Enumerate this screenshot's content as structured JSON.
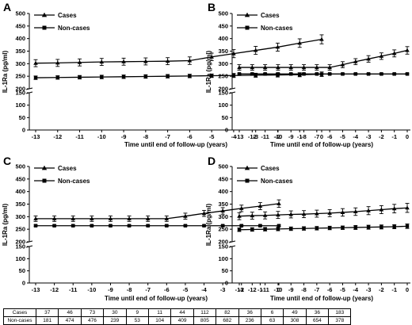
{
  "chart_data": [
    {
      "panel": "A",
      "type": "line",
      "ylabel": "IL-1Ra (pg/ml)",
      "xlabel": "Time until end of follow-up (years)",
      "x": [
        -13,
        -12,
        -11,
        -10,
        -9,
        -8,
        -7,
        -6,
        -5,
        -4,
        -3,
        -2,
        -1,
        0
      ],
      "series": [
        {
          "name": "Cases",
          "marker": "triangle",
          "values": [
            302,
            303,
            305,
            307,
            308,
            309,
            310,
            312,
            327,
            340,
            353,
            366,
            382,
            397
          ],
          "errors": [
            14,
            14,
            14,
            14,
            14,
            14,
            14,
            15,
            15,
            16,
            16,
            16,
            17,
            18
          ]
        },
        {
          "name": "Non-cases",
          "marker": "square",
          "values": [
            244,
            245,
            246,
            247,
            248,
            249,
            250,
            251,
            252,
            253,
            254,
            255,
            256,
            258
          ],
          "errors": [
            7,
            7,
            7,
            7,
            7,
            7,
            7,
            7,
            7,
            8,
            8,
            8,
            8,
            9
          ]
        }
      ]
    },
    {
      "panel": "B",
      "type": "line",
      "ylabel": "IL-1Ra (pg/ml)",
      "xlabel": "Time until end of follow-up (years)",
      "x": [
        -13,
        -12,
        -11,
        -10,
        -9,
        -8,
        -7,
        -6,
        -5,
        -4,
        -3,
        -2,
        -1,
        0
      ],
      "series": [
        {
          "name": "Cases",
          "marker": "triangle",
          "values": [
            285,
            285,
            285,
            285,
            285,
            285,
            285,
            285,
            296,
            308,
            319,
            330,
            341,
            353
          ],
          "errors": [
            11,
            11,
            11,
            11,
            11,
            11,
            11,
            11,
            12,
            12,
            13,
            13,
            14,
            15
          ]
        },
        {
          "name": "Non-cases",
          "marker": "square",
          "values": [
            259,
            259,
            259,
            259,
            259,
            259,
            259,
            259,
            259,
            259,
            259,
            259,
            259,
            259
          ],
          "errors": [
            3,
            3,
            3,
            3,
            3,
            3,
            3,
            3,
            3,
            3,
            3,
            3,
            3,
            3
          ]
        }
      ]
    },
    {
      "panel": "C",
      "type": "line",
      "ylabel": "IL-1Ra (pg/ml)",
      "xlabel": "Time until end of follow-up (years)",
      "x": [
        -13,
        -12,
        -11,
        -10,
        -9,
        -8,
        -7,
        -6,
        -5,
        -4,
        -3,
        -2,
        -1,
        0
      ],
      "series": [
        {
          "name": "Cases",
          "marker": "triangle",
          "values": [
            292,
            292,
            292,
            292,
            292,
            292,
            292,
            292,
            302,
            313,
            323,
            333,
            342,
            352
          ],
          "errors": [
            11,
            11,
            11,
            11,
            11,
            11,
            11,
            11,
            12,
            12,
            13,
            13,
            14,
            15
          ]
        },
        {
          "name": "Non-cases",
          "marker": "square",
          "values": [
            264,
            264,
            264,
            264,
            264,
            264,
            264,
            264,
            264,
            264,
            264,
            264,
            264,
            264
          ],
          "errors": [
            3,
            3,
            3,
            3,
            3,
            3,
            3,
            3,
            3,
            3,
            3,
            3,
            3,
            3
          ]
        }
      ]
    },
    {
      "panel": "D",
      "type": "line",
      "ylabel": "IL-1Ra (pg/ml)",
      "xlabel": "Time until end of follow-up (years)",
      "x": [
        -13,
        -12,
        -11,
        -10,
        -9,
        -8,
        -7,
        -6,
        -5,
        -4,
        -3,
        -2,
        -1,
        0
      ],
      "series": [
        {
          "name": "Cases",
          "marker": "triangle",
          "values": [
            302,
            304,
            305,
            307,
            309,
            310,
            312,
            314,
            317,
            320,
            324,
            328,
            332,
            335
          ],
          "errors": [
            14,
            14,
            14,
            14,
            14,
            14,
            14,
            14,
            15,
            15,
            16,
            16,
            17,
            18
          ]
        },
        {
          "name": "Non-cases",
          "marker": "square",
          "values": [
            248,
            249,
            250,
            251,
            252,
            253,
            254,
            255,
            256,
            257,
            258,
            259,
            260,
            262
          ],
          "errors": [
            7,
            7,
            7,
            7,
            7,
            7,
            7,
            7,
            7,
            8,
            8,
            8,
            8,
            9
          ]
        }
      ]
    }
  ],
  "axis": {
    "x_ticks": [
      "-13",
      "-12",
      "-11",
      "-10",
      "-9",
      "-8",
      "-7",
      "-6",
      "-5",
      "-4",
      "-3",
      "-2",
      "-1",
      "0"
    ],
    "y_upper_ticks": [
      "200",
      "250",
      "300",
      "350",
      "400",
      "450",
      "500"
    ],
    "y_lower_ticks": [
      "0",
      "50",
      "100",
      "150"
    ],
    "y_upper_range": [
      200,
      500
    ],
    "y_lower_range": [
      0,
      150
    ],
    "y_break": true
  },
  "legend": {
    "cases": "Cases",
    "noncases": "Non-cases",
    "placement": "top-left"
  },
  "table": {
    "rows": [
      {
        "label": "Cases",
        "values": [
          "37",
          "46",
          "73",
          "30",
          "9",
          "11",
          "44",
          "112",
          "82",
          "36",
          "6",
          "49",
          "36",
          "183"
        ]
      },
      {
        "label": "Non-cases",
        "values": [
          "181",
          "474",
          "476",
          "239",
          "53",
          "104",
          "409",
          "805",
          "682",
          "236",
          "63",
          "308",
          "654",
          "378"
        ]
      }
    ]
  },
  "colors": {
    "ink": "#000000",
    "background": "#ffffff"
  }
}
